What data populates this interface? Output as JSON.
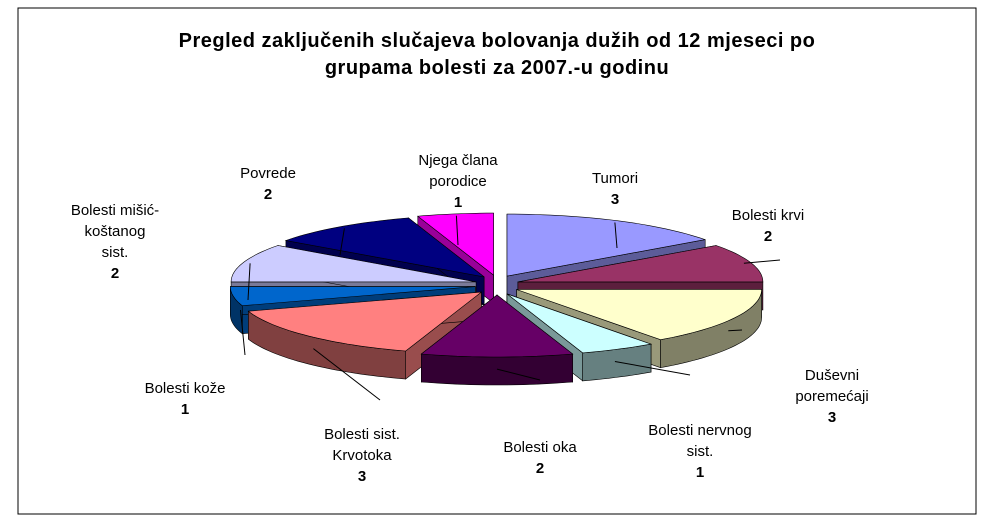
{
  "chart_data": {
    "type": "pie3d",
    "title": "Pregled zaključenih slučajeva bolovanja dužih od 12 mjeseci po grupama bolesti za 2007.-u godinu",
    "categories": [
      "Tumori",
      "Bolesti krvi",
      "Duševni poremećaji",
      "Bolesti nervnog sist.",
      "Bolesti oka",
      "Bolesti sist. Krvotoka",
      "Bolesti kože",
      "Bolesti mišić-koštanog sist.",
      "Povrede",
      "Njega člana porodice"
    ],
    "values": [
      3,
      2,
      3,
      1,
      2,
      3,
      1,
      2,
      2,
      1
    ],
    "colors": [
      "#9999ff",
      "#993366",
      "#ffffcc",
      "#ccffff",
      "#660066",
      "#ff8080",
      "#0066cc",
      "#ccccff",
      "#000080",
      "#ff00ff"
    ]
  }
}
